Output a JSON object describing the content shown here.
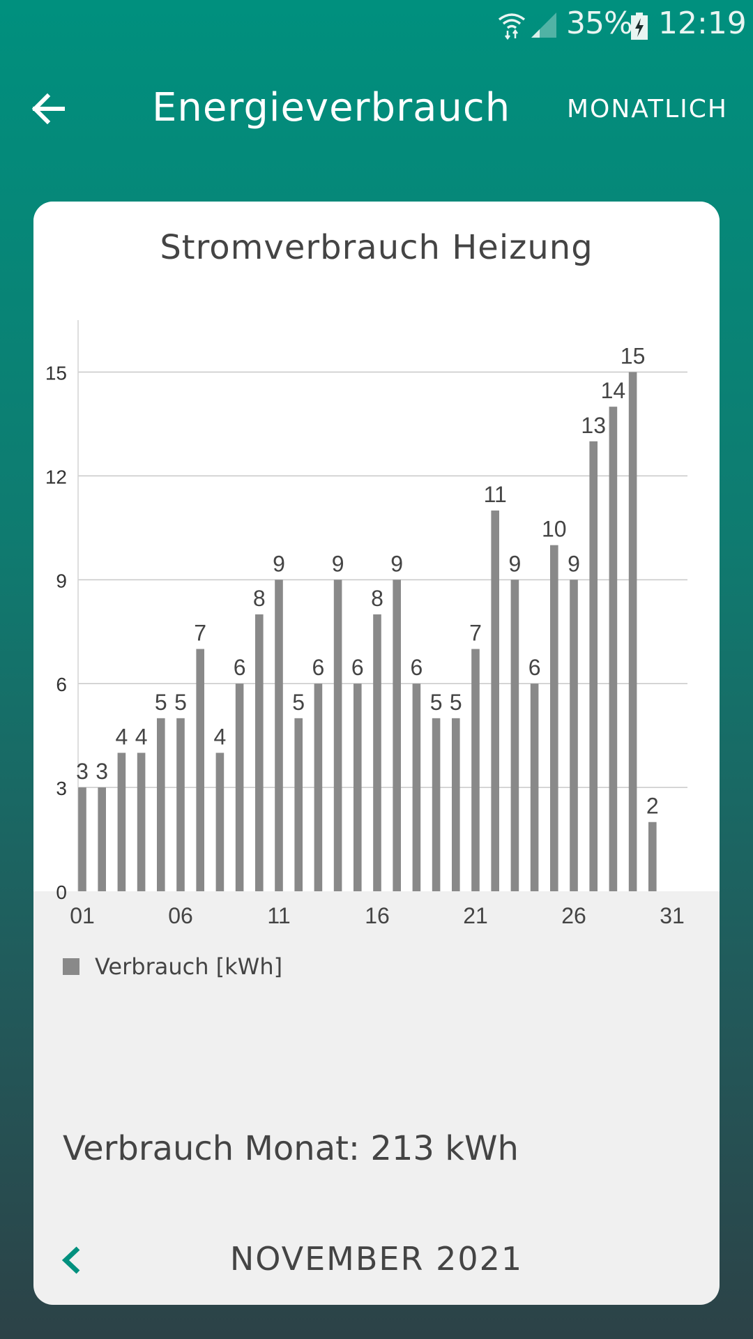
{
  "status_bar": {
    "battery": "35%",
    "time": "12:19"
  },
  "toolbar": {
    "title": "Energieverbrauch",
    "period_button": "MONATLICH",
    "back_icon": "arrow-left-icon"
  },
  "card": {
    "chart_title": "Stromverbrauch Heizung",
    "legend_label": "Verbrauch [kWh]",
    "summary": "Verbrauch Monat: 213 kWh",
    "month_label": "NOVEMBER 2021",
    "prev_icon": "chevron-left-icon"
  },
  "colors": {
    "header_gradient_top": "#00907e",
    "bar": "#898989",
    "accent": "#00907e",
    "text": "#444444"
  },
  "chart_data": {
    "type": "bar",
    "title": "Stromverbrauch Heizung",
    "categories": [
      "01",
      "02",
      "03",
      "04",
      "05",
      "06",
      "07",
      "08",
      "09",
      "10",
      "11",
      "12",
      "13",
      "14",
      "15",
      "16",
      "17",
      "18",
      "19",
      "20",
      "21",
      "22",
      "23",
      "24",
      "25",
      "26",
      "27",
      "28",
      "29",
      "30"
    ],
    "x_tick_labels": [
      "01",
      "06",
      "11",
      "16",
      "21",
      "26",
      "31"
    ],
    "series": [
      {
        "name": "Verbrauch [kWh]",
        "values": [
          3,
          3,
          4,
          4,
          5,
          5,
          7,
          4,
          6,
          8,
          9,
          5,
          6,
          9,
          6,
          8,
          9,
          6,
          5,
          5,
          7,
          11,
          9,
          6,
          10,
          9,
          13,
          14,
          15,
          2
        ]
      }
    ],
    "ylim": [
      0,
      16.3
    ],
    "yticks": [
      0,
      3,
      6,
      9,
      12,
      15
    ],
    "grid": true,
    "data_labels": true,
    "legend": "bottom-left"
  }
}
